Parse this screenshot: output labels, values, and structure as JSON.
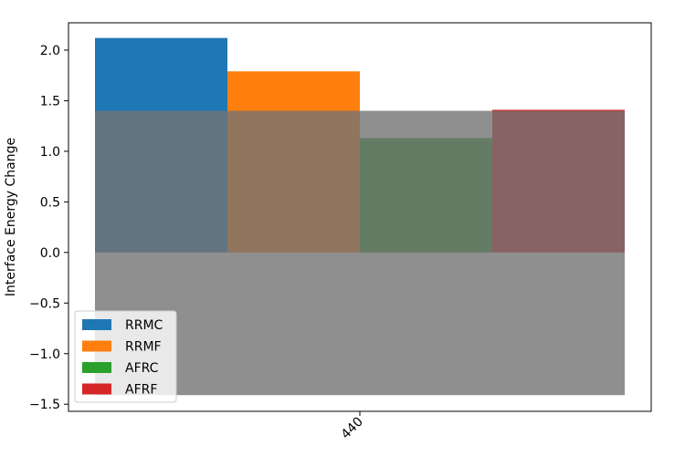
{
  "chart_data": {
    "type": "bar",
    "categories": [
      "440"
    ],
    "series": [
      {
        "name": "RRMC",
        "values": [
          2.12
        ],
        "color": "#1f77b4"
      },
      {
        "name": "RRMF",
        "values": [
          1.79
        ],
        "color": "#ff7f0e"
      },
      {
        "name": "AFRC",
        "values": [
          1.13
        ],
        "color": "#2ca02c"
      },
      {
        "name": "AFRF",
        "values": [
          1.41
        ],
        "color": "#d62728"
      }
    ],
    "overlay_range": {
      "ymin": -1.41,
      "ymax": 1.4,
      "color": "#737373",
      "opacity": 0.8
    },
    "title": "",
    "xlabel": "",
    "ylabel": "Interface Energy Change",
    "ylim": [
      -1.57,
      2.27
    ],
    "yticks": [
      -1.5,
      -1.0,
      -0.5,
      0.0,
      0.5,
      1.0,
      1.5,
      2.0
    ],
    "ytick_labels": [
      "−1.5",
      "−1.0",
      "−0.5",
      "0.0",
      "0.5",
      "1.0",
      "1.5",
      "2.0"
    ],
    "grid": false,
    "legend_position": "lower-left"
  }
}
